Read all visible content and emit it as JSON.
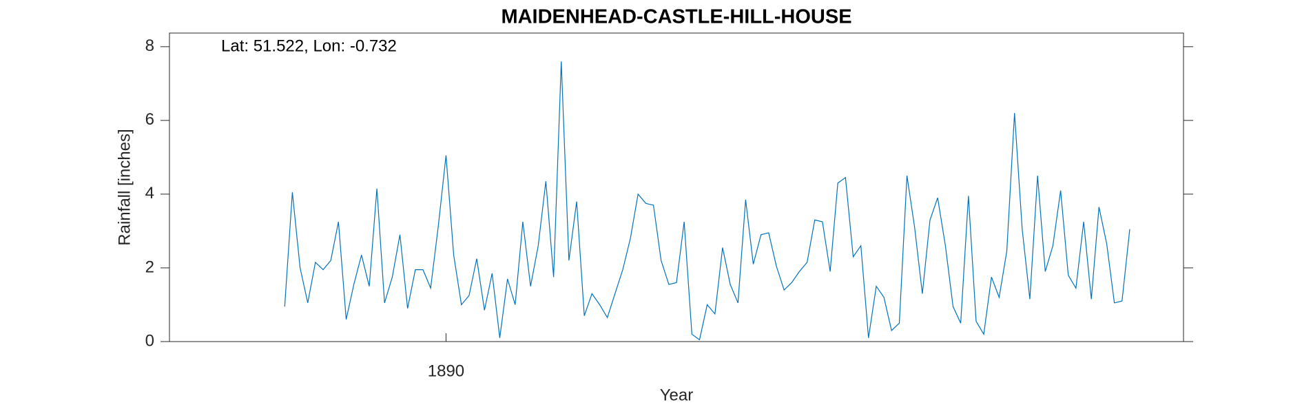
{
  "chart_data": {
    "type": "line",
    "title": "MAIDENHEAD-CASTLE-HILL-HOUSE",
    "annotation": "Lat: 51.522, Lon: -0.732",
    "xlabel": "Year",
    "ylabel": "Rainfall [inches]",
    "color": "#0072bd",
    "xlim": [
      1887,
      1898
    ],
    "xticks": [
      1890
    ],
    "ylim": [
      0,
      8.37
    ],
    "yticks": [
      0,
      2,
      4,
      6,
      8
    ],
    "x": [
      1888.25,
      1888.333,
      1888.417,
      1888.5,
      1888.583,
      1888.667,
      1888.75,
      1888.833,
      1888.917,
      1889,
      1889.083,
      1889.167,
      1889.25,
      1889.333,
      1889.417,
      1889.5,
      1889.583,
      1889.667,
      1889.75,
      1889.833,
      1889.917,
      1890,
      1890.083,
      1890.167,
      1890.25,
      1890.333,
      1890.417,
      1890.5,
      1890.583,
      1890.667,
      1890.75,
      1890.833,
      1890.917,
      1891,
      1891.083,
      1891.167,
      1891.25,
      1891.333,
      1891.417,
      1891.5,
      1891.583,
      1891.667,
      1891.75,
      1891.833,
      1891.917,
      1892,
      1892.083,
      1892.167,
      1892.25,
      1892.333,
      1892.417,
      1892.5,
      1892.583,
      1892.667,
      1892.75,
      1892.833,
      1892.917,
      1893,
      1893.083,
      1893.167,
      1893.25,
      1893.333,
      1893.417,
      1893.5,
      1893.583,
      1893.667,
      1893.75,
      1893.833,
      1893.917,
      1894,
      1894.083,
      1894.167,
      1894.25,
      1894.333,
      1894.417,
      1894.5,
      1894.583,
      1894.667,
      1894.75,
      1894.833,
      1894.917,
      1895,
      1895.083,
      1895.167,
      1895.25,
      1895.333,
      1895.417,
      1895.5,
      1895.583,
      1895.667,
      1895.75,
      1895.833,
      1895.917,
      1896,
      1896.083,
      1896.167,
      1896.25,
      1896.333,
      1896.417,
      1896.5,
      1896.583,
      1896.667,
      1896.75,
      1896.833,
      1896.917,
      1897,
      1897.083,
      1897.167,
      1897.25,
      1897.333,
      1897.417
    ],
    "values": [
      0.95,
      4.05,
      2.0,
      1.05,
      2.15,
      1.95,
      2.2,
      3.25,
      0.6,
      1.55,
      2.35,
      1.5,
      4.15,
      1.05,
      1.75,
      2.9,
      0.9,
      1.95,
      1.95,
      1.45,
      3.15,
      5.05,
      2.35,
      1.0,
      1.25,
      2.25,
      0.85,
      1.85,
      0.1,
      1.7,
      1.0,
      3.25,
      1.5,
      2.6,
      4.35,
      1.75,
      7.6,
      2.2,
      3.8,
      0.7,
      1.3,
      1.0,
      0.65,
      1.3,
      1.95,
      2.8,
      4.0,
      3.75,
      3.7,
      2.2,
      1.55,
      1.6,
      3.25,
      0.2,
      0.05,
      1.0,
      0.75,
      2.55,
      1.55,
      1.05,
      3.85,
      2.1,
      2.9,
      2.95,
      2.05,
      1.4,
      1.6,
      1.9,
      2.15,
      3.3,
      3.25,
      1.9,
      4.3,
      4.45,
      2.3,
      2.6,
      0.1,
      1.5,
      1.2,
      0.3,
      0.5,
      4.5,
      3.1,
      1.3,
      3.3,
      3.9,
      2.6,
      0.95,
      0.5,
      3.95,
      0.55,
      0.2,
      1.75,
      1.2,
      2.45,
      6.2,
      3.05,
      1.15,
      4.5,
      1.9,
      2.6,
      4.1,
      1.8,
      1.45,
      3.25,
      1.15,
      3.65,
      2.65,
      1.05,
      1.1,
      3.05
    ]
  }
}
